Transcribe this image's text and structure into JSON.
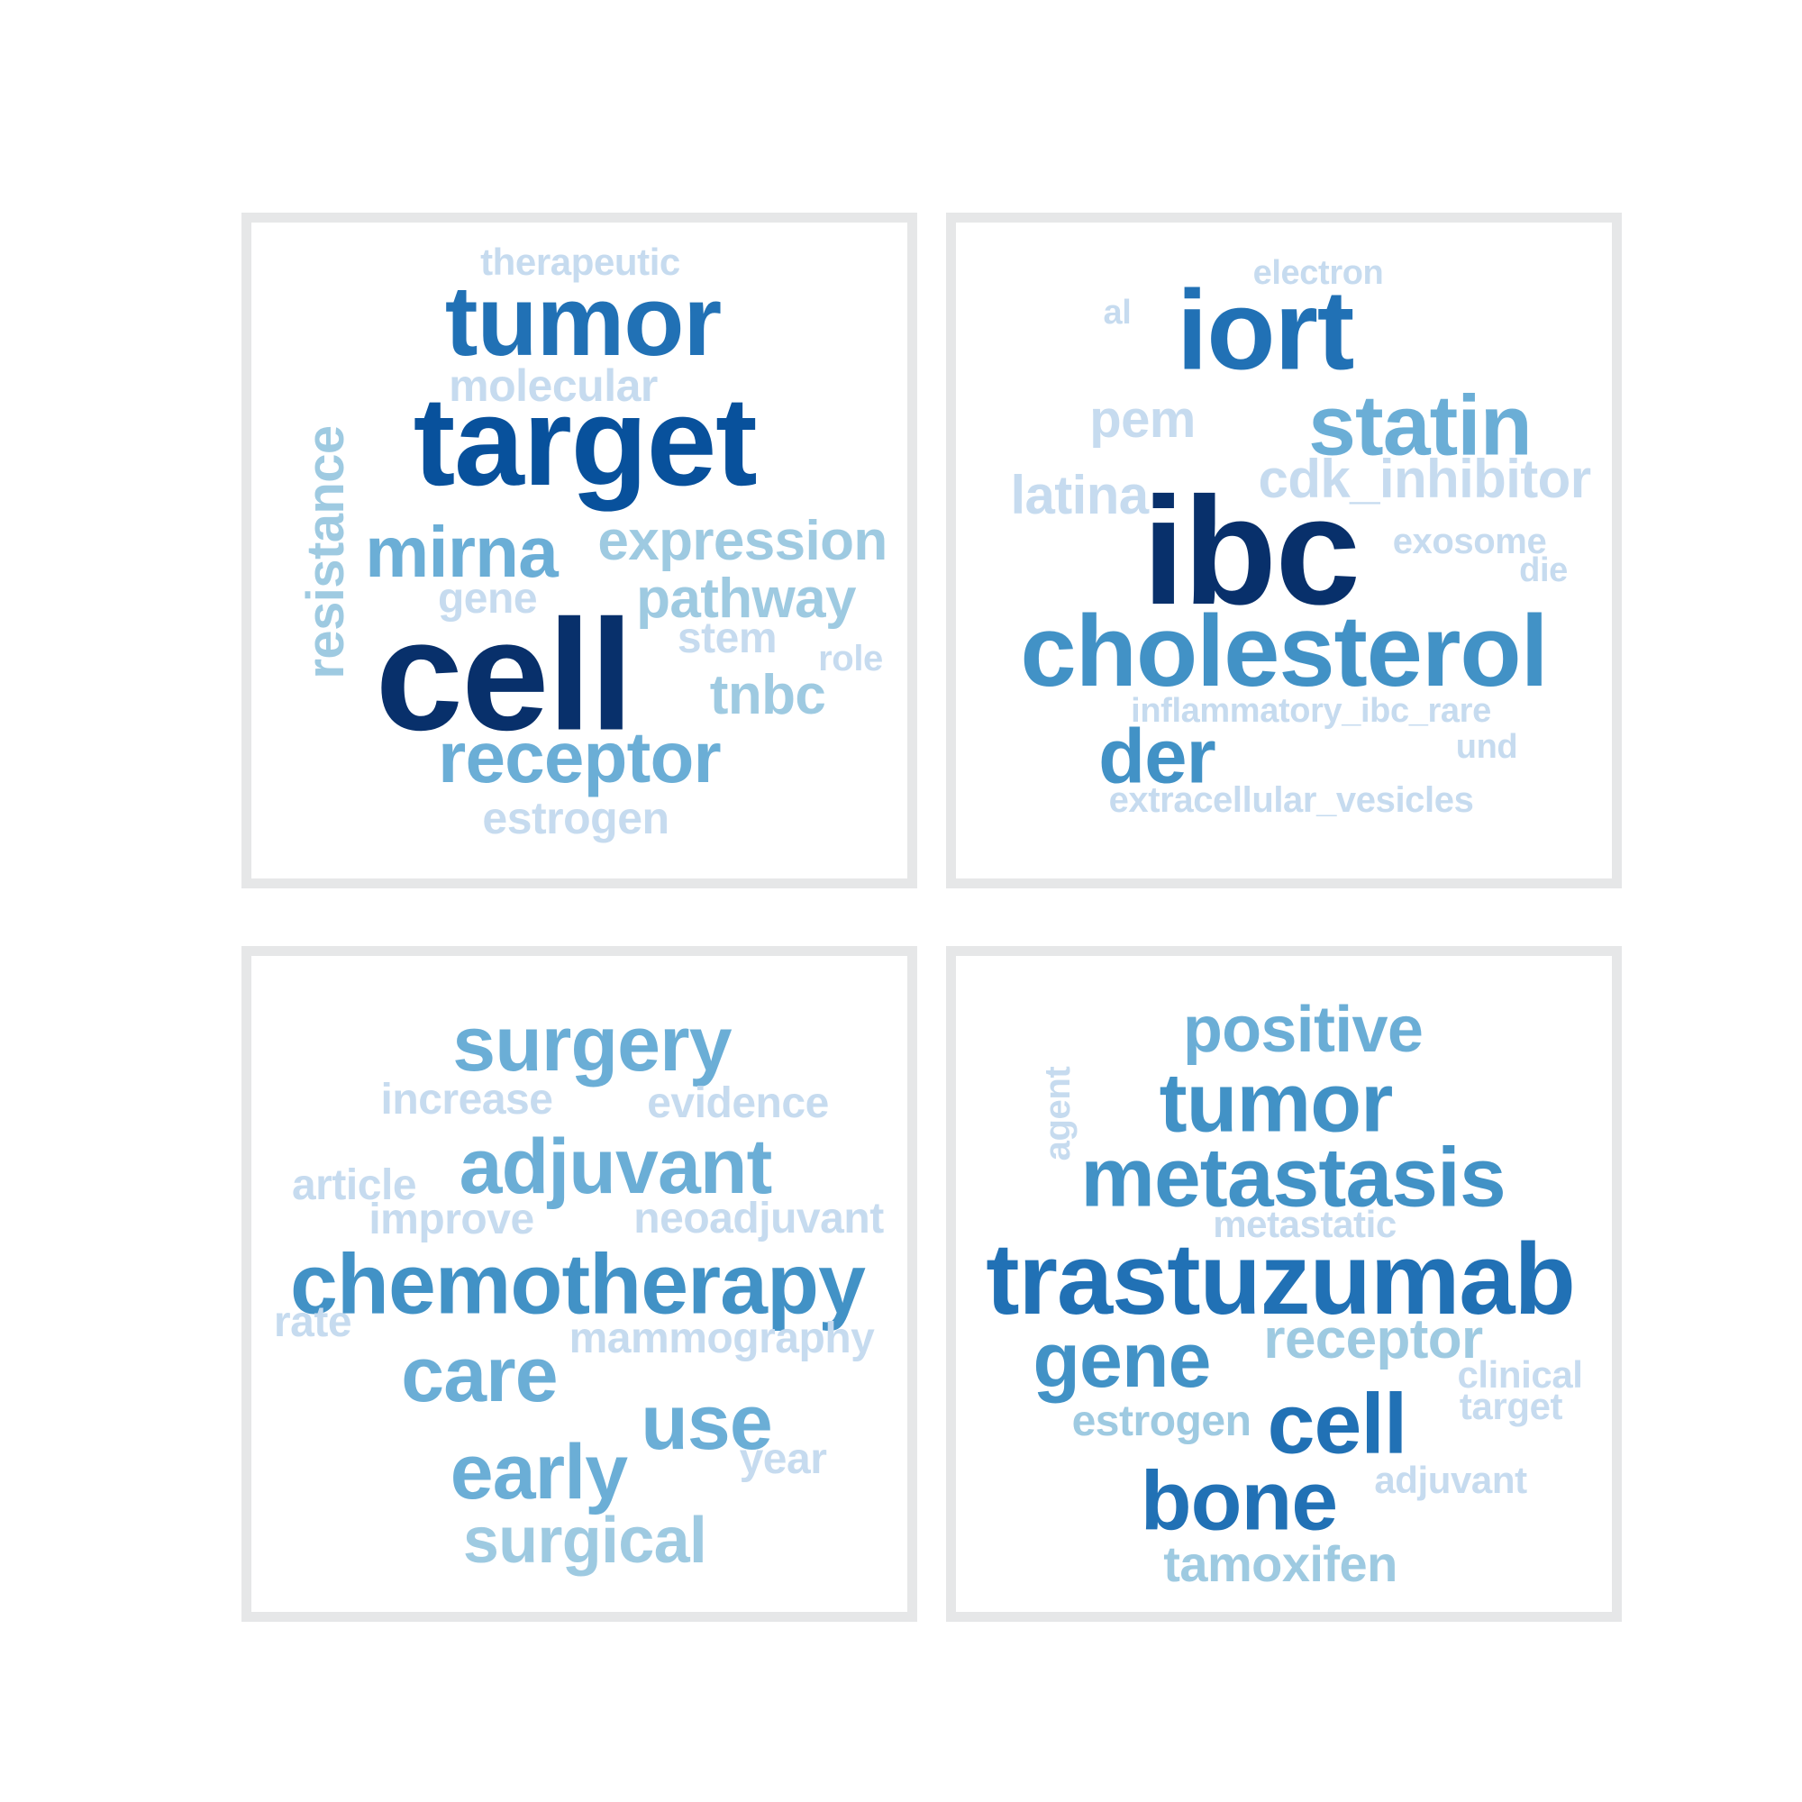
{
  "palette": {
    "darkest": "#08306b",
    "dark": "#08519c",
    "mid_dark": "#2171b5",
    "mid": "#4292c6",
    "mid_light": "#6baed6",
    "light": "#9ecae1",
    "lightest": "#c6dbef",
    "panel_border": "#e6e7e8"
  },
  "panels": [
    {
      "words": [
        {
          "text": "therapeutic",
          "color": "#c6dbef",
          "vertical": false
        },
        {
          "text": "tumor",
          "color": "#2171b5",
          "vertical": false
        },
        {
          "text": "molecular",
          "color": "#c6dbef",
          "vertical": false
        },
        {
          "text": "target",
          "color": "#08519c",
          "vertical": false
        },
        {
          "text": "resistance",
          "color": "#9ecae1",
          "vertical": true
        },
        {
          "text": "mirna",
          "color": "#6baed6",
          "vertical": false
        },
        {
          "text": "expression",
          "color": "#9ecae1",
          "vertical": false
        },
        {
          "text": "gene",
          "color": "#c6dbef",
          "vertical": false
        },
        {
          "text": "pathway",
          "color": "#9ecae1",
          "vertical": false
        },
        {
          "text": "stem",
          "color": "#c6dbef",
          "vertical": false
        },
        {
          "text": "role",
          "color": "#c6dbef",
          "vertical": false
        },
        {
          "text": "cell",
          "color": "#08306b",
          "vertical": false
        },
        {
          "text": "tnbc",
          "color": "#9ecae1",
          "vertical": false
        },
        {
          "text": "receptor",
          "color": "#6baed6",
          "vertical": false
        },
        {
          "text": "estrogen",
          "color": "#c6dbef",
          "vertical": false
        }
      ]
    },
    {
      "words": [
        {
          "text": "electron",
          "color": "#c6dbef",
          "vertical": false
        },
        {
          "text": "al",
          "color": "#c6dbef",
          "vertical": false
        },
        {
          "text": "iort",
          "color": "#2171b5",
          "vertical": false
        },
        {
          "text": "pem",
          "color": "#c6dbef",
          "vertical": false
        },
        {
          "text": "statin",
          "color": "#6baed6",
          "vertical": false
        },
        {
          "text": "latina",
          "color": "#c6dbef",
          "vertical": false
        },
        {
          "text": "cdk_inhibitor",
          "color": "#c6dbef",
          "vertical": false
        },
        {
          "text": "ibc",
          "color": "#08306b",
          "vertical": false
        },
        {
          "text": "exosome",
          "color": "#c6dbef",
          "vertical": false
        },
        {
          "text": "die",
          "color": "#c6dbef",
          "vertical": false
        },
        {
          "text": "cholesterol",
          "color": "#4292c6",
          "vertical": false
        },
        {
          "text": "inflammatory_ibc_rare",
          "color": "#c6dbef",
          "vertical": false
        },
        {
          "text": "der",
          "color": "#4292c6",
          "vertical": false
        },
        {
          "text": "und",
          "color": "#c6dbef",
          "vertical": false
        },
        {
          "text": "extracellular_vesicles",
          "color": "#c6dbef",
          "vertical": false
        }
      ]
    },
    {
      "words": [
        {
          "text": "surgery",
          "color": "#6baed6",
          "vertical": false
        },
        {
          "text": "increase",
          "color": "#c6dbef",
          "vertical": false
        },
        {
          "text": "evidence",
          "color": "#c6dbef",
          "vertical": false
        },
        {
          "text": "adjuvant",
          "color": "#6baed6",
          "vertical": false
        },
        {
          "text": "article",
          "color": "#c6dbef",
          "vertical": false
        },
        {
          "text": "improve",
          "color": "#c6dbef",
          "vertical": false
        },
        {
          "text": "neoadjuvant",
          "color": "#c6dbef",
          "vertical": false
        },
        {
          "text": "chemotherapy",
          "color": "#4292c6",
          "vertical": false
        },
        {
          "text": "rate",
          "color": "#c6dbef",
          "vertical": false
        },
        {
          "text": "mammography",
          "color": "#c6dbef",
          "vertical": false
        },
        {
          "text": "care",
          "color": "#6baed6",
          "vertical": false
        },
        {
          "text": "use",
          "color": "#6baed6",
          "vertical": false
        },
        {
          "text": "year",
          "color": "#c6dbef",
          "vertical": false
        },
        {
          "text": "early",
          "color": "#6baed6",
          "vertical": false
        },
        {
          "text": "surgical",
          "color": "#9ecae1",
          "vertical": false
        }
      ]
    },
    {
      "words": [
        {
          "text": "positive",
          "color": "#6baed6",
          "vertical": false
        },
        {
          "text": "agent",
          "color": "#c6dbef",
          "vertical": true
        },
        {
          "text": "tumor",
          "color": "#4292c6",
          "vertical": false
        },
        {
          "text": "metastasis",
          "color": "#4292c6",
          "vertical": false
        },
        {
          "text": "metastatic",
          "color": "#c6dbef",
          "vertical": false
        },
        {
          "text": "trastuzumab",
          "color": "#2171b5",
          "vertical": false
        },
        {
          "text": "gene",
          "color": "#4292c6",
          "vertical": false
        },
        {
          "text": "receptor",
          "color": "#9ecae1",
          "vertical": false
        },
        {
          "text": "clinical",
          "color": "#c6dbef",
          "vertical": false
        },
        {
          "text": "target",
          "color": "#c6dbef",
          "vertical": false
        },
        {
          "text": "estrogen",
          "color": "#9ecae1",
          "vertical": false
        },
        {
          "text": "cell",
          "color": "#2171b5",
          "vertical": false
        },
        {
          "text": "adjuvant",
          "color": "#c6dbef",
          "vertical": false
        },
        {
          "text": "bone",
          "color": "#2171b5",
          "vertical": false
        },
        {
          "text": "tamoxifen",
          "color": "#9ecae1",
          "vertical": false
        }
      ]
    }
  ]
}
